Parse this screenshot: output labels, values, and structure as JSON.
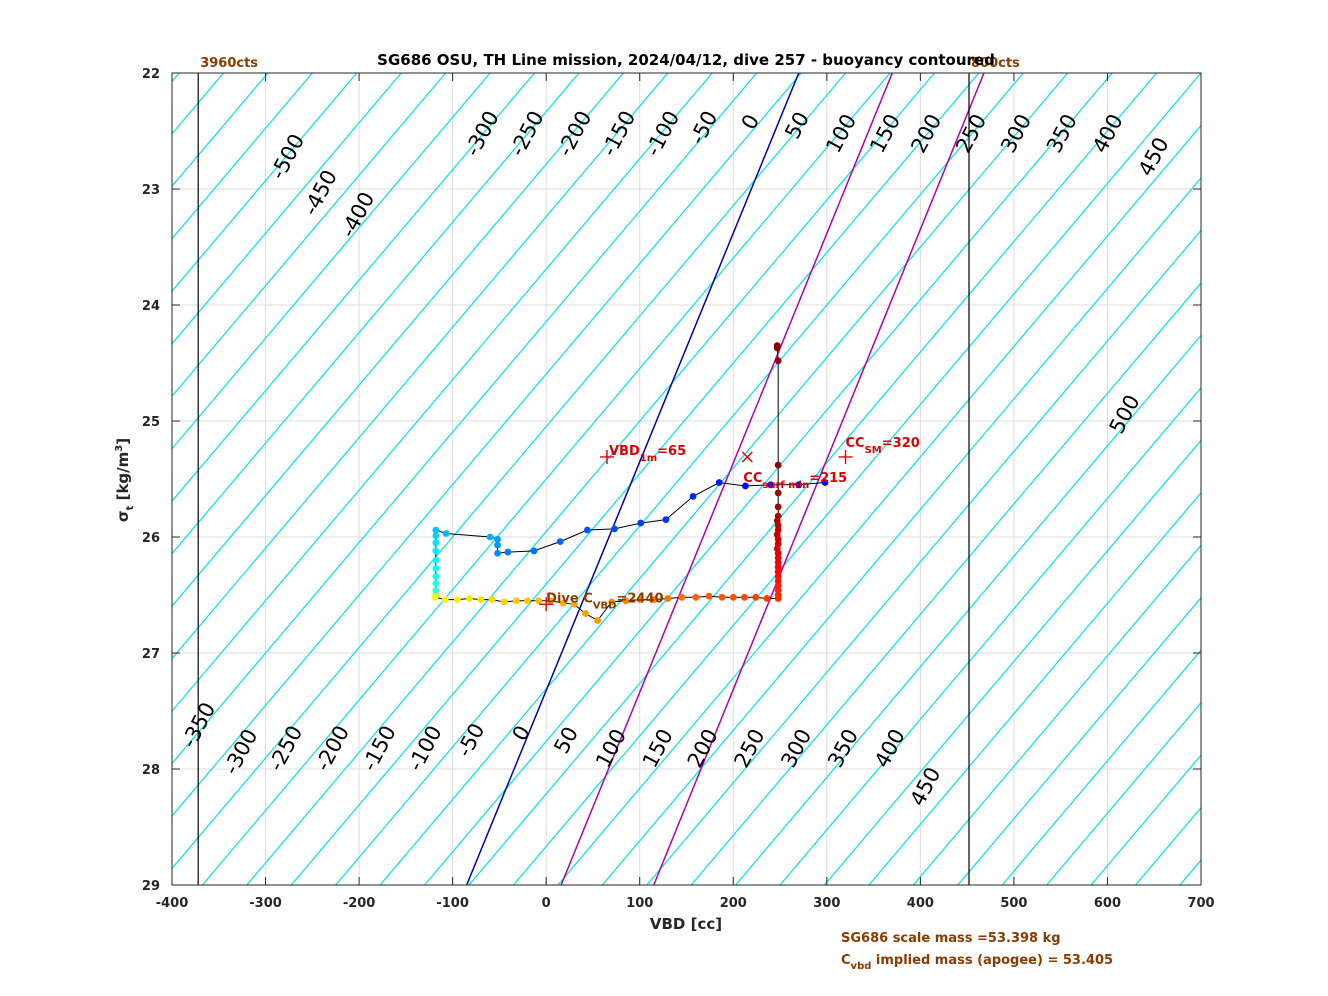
{
  "chart_data": {
    "type": "scatter",
    "title": "SG686 OSU, TH Line mission, 2024/04/12, dive 257 - buoyancy contoured",
    "xlabel": "VBD [cc]",
    "ylabel": "σ t [kg/m3]",
    "xlim": [
      -400,
      700
    ],
    "ylim": [
      22,
      29
    ],
    "y_reversed": true,
    "grid": true,
    "xticks": [
      -400,
      -300,
      -200,
      -100,
      0,
      100,
      200,
      300,
      400,
      500,
      600,
      700
    ],
    "yticks": [
      22,
      23,
      24,
      25,
      26,
      27,
      28,
      29
    ],
    "buoyancy_contour_slope_cc_per_sigma": 105,
    "buoyancy_contours": [
      -500,
      -450,
      -400,
      -350,
      -300,
      -250,
      -200,
      -150,
      -100,
      -50,
      0,
      50,
      100,
      150,
      200,
      250,
      300,
      350,
      400,
      450,
      500
    ],
    "contour_labels_top": [
      {
        "text": "-500",
        "x": -270,
        "y": 22.75
      },
      {
        "text": "-450",
        "x": -235,
        "y": 23.06
      },
      {
        "text": "-400",
        "x": -195,
        "y": 23.25
      },
      {
        "text": "-300",
        "x": -62,
        "y": 22.55
      },
      {
        "text": "-250",
        "x": -14,
        "y": 22.55
      },
      {
        "text": "-200",
        "x": 37,
        "y": 22.55
      },
      {
        "text": "-150",
        "x": 84,
        "y": 22.55
      },
      {
        "text": "-100",
        "x": 131,
        "y": 22.55
      },
      {
        "text": "-50",
        "x": 175,
        "y": 22.5
      },
      {
        "text": "0",
        "x": 225,
        "y": 22.45
      },
      {
        "text": "50",
        "x": 275,
        "y": 22.48
      },
      {
        "text": "100",
        "x": 322,
        "y": 22.55
      },
      {
        "text": "150",
        "x": 369,
        "y": 22.55
      },
      {
        "text": "200",
        "x": 413,
        "y": 22.55
      },
      {
        "text": "250",
        "x": 461,
        "y": 22.55
      },
      {
        "text": "300",
        "x": 509,
        "y": 22.55
      },
      {
        "text": "350",
        "x": 558,
        "y": 22.55
      },
      {
        "text": "400",
        "x": 607,
        "y": 22.55
      },
      {
        "text": "450",
        "x": 656,
        "y": 22.75
      },
      {
        "text": "500",
        "x": 625,
        "y": 24.97
      }
    ],
    "contour_labels_bottom": [
      {
        "text": "-350",
        "x": -365,
        "y": 27.65
      },
      {
        "text": "-300",
        "x": -320,
        "y": 27.88
      },
      {
        "text": "-250",
        "x": -272,
        "y": 27.85
      },
      {
        "text": "-200",
        "x": -222,
        "y": 27.85
      },
      {
        "text": "-150",
        "x": -172,
        "y": 27.85
      },
      {
        "text": "-100",
        "x": -123,
        "y": 27.85
      },
      {
        "text": "-50",
        "x": -74,
        "y": 27.78
      },
      {
        "text": "0",
        "x": -20,
        "y": 27.72
      },
      {
        "text": "50",
        "x": 28,
        "y": 27.78
      },
      {
        "text": "100",
        "x": 76,
        "y": 27.85
      },
      {
        "text": "150",
        "x": 126,
        "y": 27.85
      },
      {
        "text": "200",
        "x": 174,
        "y": 27.85
      },
      {
        "text": "250",
        "x": 224,
        "y": 27.85
      },
      {
        "text": "300",
        "x": 274,
        "y": 27.85
      },
      {
        "text": "350",
        "x": 324,
        "y": 27.85
      },
      {
        "text": "400",
        "x": 374,
        "y": 27.85
      },
      {
        "text": "450",
        "x": 412,
        "y": 28.18
      }
    ],
    "reference_lines": [
      {
        "name": "0 buoyancy",
        "color": "#0000aa",
        "x_at_22": 270,
        "x_at_29": -85
      },
      {
        "name": "CC surf min",
        "color": "#b000b0",
        "x_at_22": 370,
        "x_at_29": 16
      },
      {
        "name": "CC SM",
        "color": "#b000b0",
        "x_at_22": 468,
        "x_at_29": 115
      }
    ],
    "vbd_limit_lines": [
      {
        "x": -372,
        "label": "3960cts"
      },
      {
        "x": 452,
        "label": "800cts"
      }
    ],
    "markers": [
      {
        "text": "VBD",
        "sub": "1m",
        "suffix": "=65",
        "x": 65,
        "y": 25.31,
        "symbol": "+"
      },
      {
        "text": "CC",
        "sub": "SM",
        "suffix": "=320",
        "x": 320,
        "y": 25.31,
        "symbol": "+"
      },
      {
        "text": "CC",
        "sub": "surf min",
        "suffix": "=215",
        "x": 215,
        "y": 25.31,
        "symbol": "x"
      },
      {
        "text": "Dive C",
        "sub": "VBD",
        "suffix": "=2440",
        "x": 0,
        "y": 26.58,
        "symbol": "+"
      }
    ],
    "descent": [
      [
        247,
        24.35
      ],
      [
        247,
        24.37
      ],
      [
        248,
        24.48
      ],
      [
        248,
        25.38
      ],
      [
        248,
        25.62
      ],
      [
        248,
        25.74
      ],
      [
        248,
        25.82
      ],
      [
        247,
        25.86
      ],
      [
        248,
        25.9
      ],
      [
        248,
        25.94
      ],
      [
        247,
        25.98
      ],
      [
        248,
        26.02
      ],
      [
        248,
        26.06
      ],
      [
        247,
        26.1
      ],
      [
        248,
        26.14
      ],
      [
        248,
        26.18
      ],
      [
        248,
        26.22
      ],
      [
        248,
        26.26
      ],
      [
        248,
        26.3
      ],
      [
        248,
        26.34
      ],
      [
        248,
        26.38
      ],
      [
        248,
        26.42
      ],
      [
        248,
        26.46
      ],
      [
        248,
        26.5
      ],
      [
        248,
        26.53
      ],
      [
        236,
        26.53
      ],
      [
        224,
        26.52
      ],
      [
        212,
        26.52
      ],
      [
        200,
        26.52
      ],
      [
        188,
        26.52
      ],
      [
        174,
        26.51
      ],
      [
        160,
        26.52
      ],
      [
        145,
        26.52
      ],
      [
        130,
        26.53
      ],
      [
        115,
        26.54
      ],
      [
        100,
        26.54
      ],
      [
        85,
        26.55
      ],
      [
        70,
        26.56
      ],
      [
        55,
        26.72
      ],
      [
        42,
        26.66
      ],
      [
        30,
        26.58
      ],
      [
        18,
        26.57
      ],
      [
        5,
        26.55
      ],
      [
        -8,
        26.55
      ],
      [
        -20,
        26.55
      ],
      [
        -32,
        26.55
      ],
      [
        -45,
        26.56
      ],
      [
        -58,
        26.54
      ],
      [
        -70,
        26.54
      ],
      [
        -82,
        26.53
      ],
      [
        -95,
        26.54
      ],
      [
        -108,
        26.54
      ],
      [
        -119,
        26.52
      ],
      [
        -118,
        26.5
      ]
    ],
    "ascent": [
      [
        -118,
        26.46
      ],
      [
        -118,
        26.4
      ],
      [
        -118,
        26.34
      ],
      [
        -118,
        26.27
      ],
      [
        -118,
        26.2
      ],
      [
        -118,
        26.12
      ],
      [
        -118,
        26.05
      ],
      [
        -118,
        25.99
      ],
      [
        -118,
        25.94
      ],
      [
        -107,
        25.97
      ],
      [
        -60,
        26.0
      ],
      [
        -52,
        26.02
      ],
      [
        -52,
        26.07
      ],
      [
        -52,
        26.14
      ],
      [
        -41,
        26.13
      ],
      [
        -13,
        26.12
      ],
      [
        15,
        26.04
      ],
      [
        44,
        25.94
      ],
      [
        73,
        25.93
      ],
      [
        101,
        25.88
      ],
      [
        128,
        25.85
      ],
      [
        157,
        25.65
      ],
      [
        185,
        25.53
      ],
      [
        213,
        25.56
      ],
      [
        240,
        25.55
      ],
      [
        270,
        25.55
      ],
      [
        298,
        25.53
      ]
    ],
    "footer": {
      "line1": "SG686 scale mass =53.398 kg",
      "line2_prefix": "C",
      "line2_sub": "vbd",
      "line2_suffix": " implied mass (apogee) = 53.405"
    }
  }
}
